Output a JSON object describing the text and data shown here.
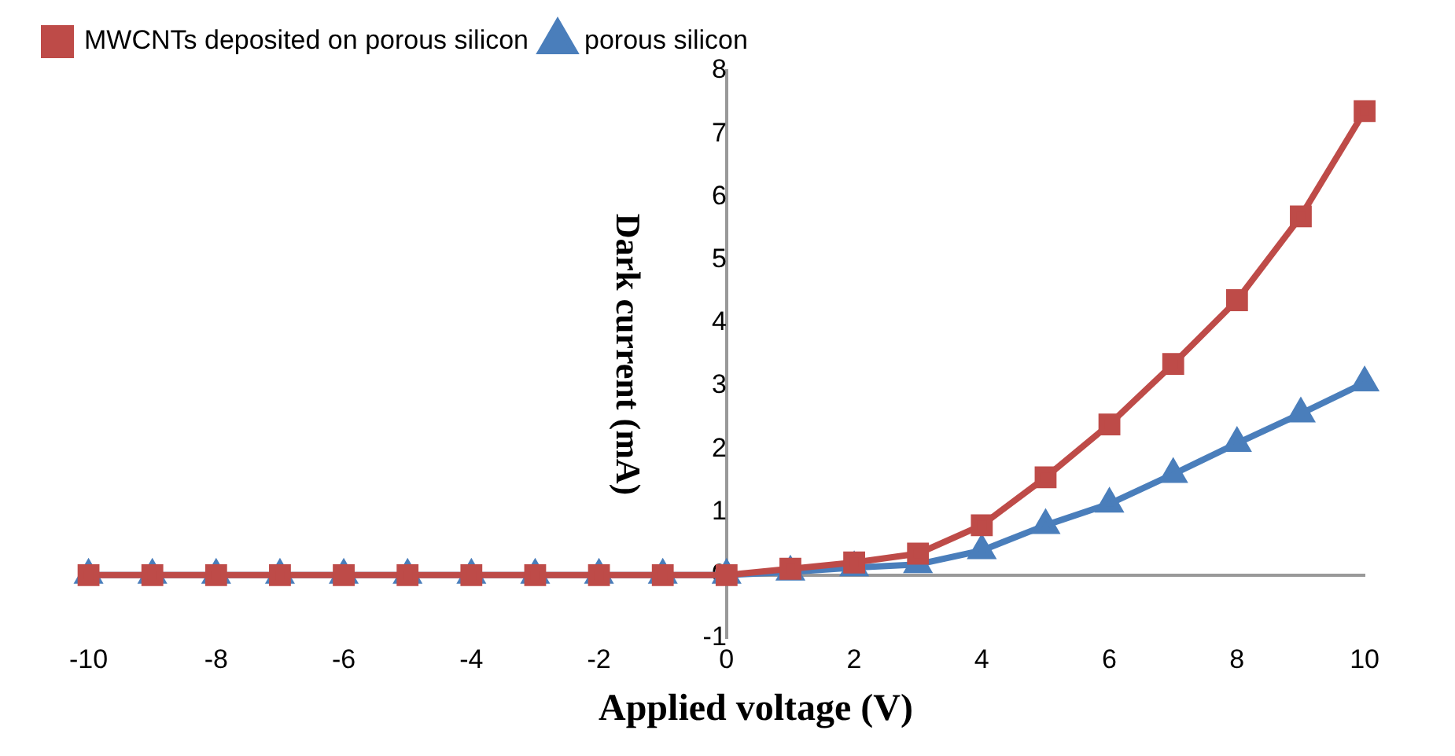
{
  "chart_data": {
    "type": "line",
    "xlabel": "Applied voltage (V)",
    "ylabel": "Dark current (mA)",
    "x": [
      -10,
      -9,
      -8,
      -7,
      -6,
      -5,
      -4,
      -3,
      -2,
      -1,
      0,
      1,
      2,
      3,
      4,
      5,
      6,
      7,
      8,
      9,
      10
    ],
    "series": [
      {
        "name": "porous silicon",
        "color": "#4a7ebb",
        "marker": "triangle",
        "values": [
          0,
          0,
          0,
          0,
          0,
          0,
          0,
          0,
          0,
          0,
          0,
          0.05,
          0.12,
          0.17,
          0.39,
          0.79,
          1.13,
          1.6,
          2.09,
          2.56,
          3.05
        ]
      },
      {
        "name": "MWCNTs deposited on porous silicon",
        "color": "#be4b48",
        "marker": "square",
        "values": [
          0,
          0,
          0,
          0,
          0,
          0,
          0,
          0,
          0,
          0,
          0,
          0.1,
          0.2,
          0.34,
          0.79,
          1.55,
          2.39,
          3.35,
          4.36,
          5.69,
          7.36
        ]
      }
    ],
    "xlim": [
      -10,
      10
    ],
    "xticks": [
      -10,
      -8,
      -6,
      -4,
      -2,
      0,
      2,
      4,
      6,
      8,
      10
    ],
    "ylim": [
      -1,
      8
    ],
    "yticks": [
      -1,
      0,
      1,
      2,
      3,
      4,
      5,
      6,
      7,
      8
    ],
    "grid": false,
    "legend": "top left"
  }
}
